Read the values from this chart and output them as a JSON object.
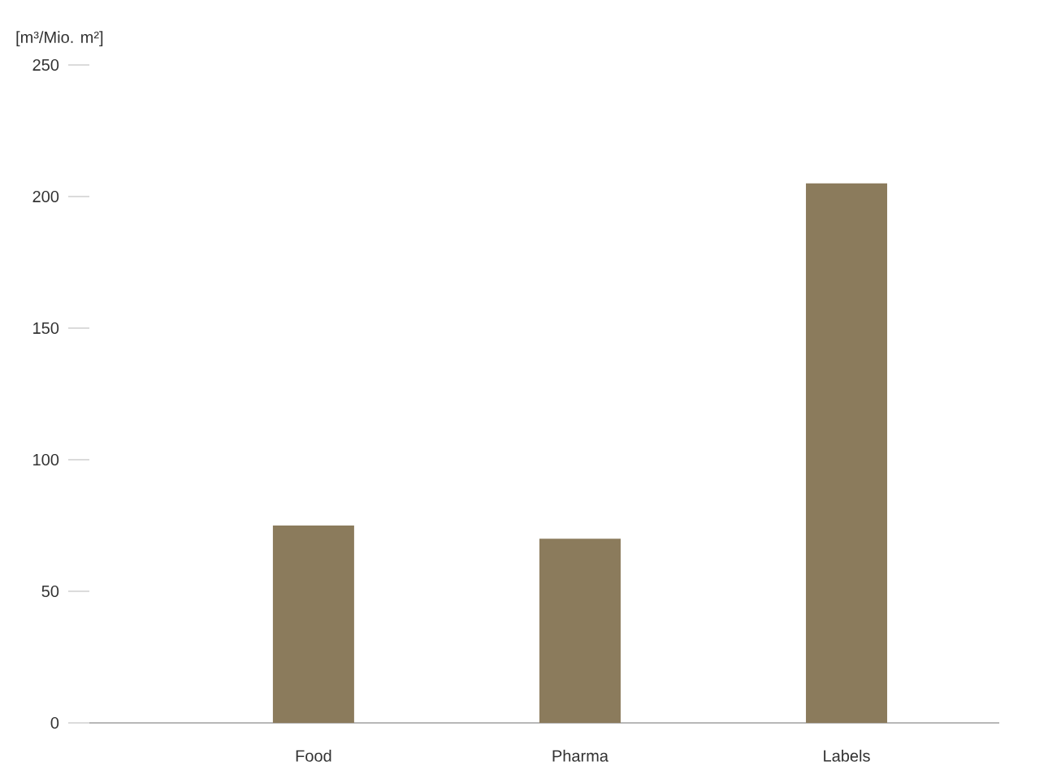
{
  "chart_data": {
    "type": "bar",
    "ylabel": "[m³/Mio. m²]",
    "categories": [
      "Food",
      "Pharma",
      "Labels"
    ],
    "values": [
      75,
      70,
      205
    ],
    "color": "#8b7b5c",
    "ylim": [
      0,
      250
    ],
    "yticks": [
      0,
      50,
      100,
      150,
      200,
      250
    ],
    "grid": false
  }
}
